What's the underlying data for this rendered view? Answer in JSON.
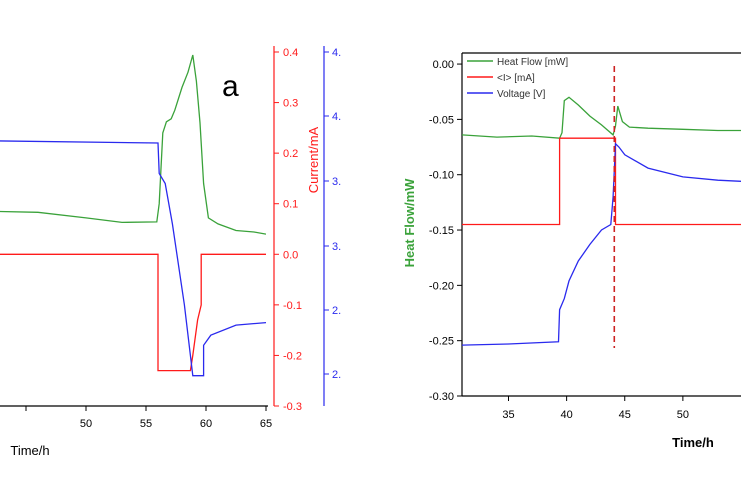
{
  "colors": {
    "heat_flow": "#3aa23a",
    "current": "#ff1a1a",
    "voltage": "#2a2aee",
    "axis": "#000000",
    "marker": "#cc2222"
  },
  "chart_data": [
    {
      "type": "line",
      "panel_label": "a",
      "xlabel": "Time/h",
      "ylabel_right_1": "Current/mA",
      "xlim": [
        40,
        65
      ],
      "x_ticks": [
        "50",
        "55",
        "60",
        "65"
      ],
      "y_right_1_lim": [
        -0.3,
        0.4
      ],
      "y_right_1_ticks": [
        "0.4",
        "0.3",
        "0.2",
        "0.1",
        "0.0",
        "-0.1",
        "-0.2",
        "-0.3"
      ],
      "y_right_2_ticks": [
        "4.",
        "4.",
        "3.",
        "3.",
        "2.",
        "2."
      ],
      "grid": false,
      "series": [
        {
          "axis": "heat_flow",
          "points": [
            [
              40,
              0.086
            ],
            [
              46,
              0.083
            ],
            [
              50,
              0.072
            ],
            [
              53,
              0.063
            ],
            [
              55.9,
              0.064
            ],
            [
              56.1,
              0.1
            ],
            [
              56.4,
              0.24
            ],
            [
              56.7,
              0.262
            ],
            [
              57.1,
              0.268
            ],
            [
              57.4,
              0.285
            ],
            [
              58.0,
              0.33
            ],
            [
              58.5,
              0.36
            ],
            [
              58.9,
              0.394
            ],
            [
              59.2,
              0.342
            ],
            [
              59.5,
              0.26
            ],
            [
              59.8,
              0.14
            ],
            [
              60.2,
              0.072
            ],
            [
              61.0,
              0.06
            ],
            [
              62.5,
              0.047
            ],
            [
              64,
              0.044
            ],
            [
              65,
              0.04
            ]
          ]
        },
        {
          "axis": "current",
          "points": [
            [
              40,
              0.0
            ],
            [
              56,
              0.0
            ],
            [
              56,
              -0.23
            ],
            [
              58.7,
              -0.23
            ],
            [
              58.9,
              -0.2
            ],
            [
              59.3,
              -0.13
            ],
            [
              59.6,
              -0.1
            ],
            [
              59.6,
              0.0
            ],
            [
              65,
              0.0
            ]
          ]
        },
        {
          "axis": "current",
          "points": [
            [
              40,
              0.225
            ],
            [
              56,
              0.22
            ],
            [
              56.1,
              0.16
            ],
            [
              56.6,
              0.14
            ],
            [
              57.2,
              0.06
            ],
            [
              58.2,
              -0.1
            ],
            [
              58.7,
              -0.2
            ],
            [
              58.9,
              -0.24
            ],
            [
              59.8,
              -0.24
            ],
            [
              59.8,
              -0.18
            ],
            [
              60.4,
              -0.16
            ],
            [
              62.5,
              -0.14
            ],
            [
              65,
              -0.135
            ]
          ]
        }
      ]
    },
    {
      "type": "line",
      "xlabel": "Time/h",
      "ylabel": "Heat Flow/mW",
      "xlim": [
        31,
        55
      ],
      "ylim": [
        -0.3,
        0.01
      ],
      "x_ticks": [
        "35",
        "40",
        "45",
        "50"
      ],
      "y_ticks": [
        "0.00",
        "-0.05",
        "-0.10",
        "-0.15",
        "-0.20",
        "-0.25",
        "-0.30"
      ],
      "grid": false,
      "legend_position": "top-left",
      "vertical_marker_x": 44.1,
      "series": [
        {
          "name": "Heat Flow [mW]",
          "axis": "heat_flow",
          "points": [
            [
              31,
              -0.064
            ],
            [
              34,
              -0.066
            ],
            [
              37,
              -0.065
            ],
            [
              39.4,
              -0.067
            ],
            [
              39.6,
              -0.062
            ],
            [
              39.8,
              -0.033
            ],
            [
              40.2,
              -0.03
            ],
            [
              41.0,
              -0.037
            ],
            [
              42,
              -0.047
            ],
            [
              43,
              -0.055
            ],
            [
              44,
              -0.064
            ],
            [
              44.2,
              -0.056
            ],
            [
              44.4,
              -0.038
            ],
            [
              44.8,
              -0.052
            ],
            [
              45.4,
              -0.057
            ],
            [
              47,
              -0.058
            ],
            [
              50,
              -0.059
            ],
            [
              53,
              -0.06
            ],
            [
              55,
              -0.06
            ]
          ]
        },
        {
          "name": "<I> [mA]",
          "axis": "current",
          "points": [
            [
              31,
              -0.145
            ],
            [
              39.4,
              -0.145
            ],
            [
              39.4,
              -0.067
            ],
            [
              44.2,
              -0.067
            ],
            [
              44.2,
              -0.145
            ],
            [
              55,
              -0.145
            ]
          ]
        },
        {
          "name": "Voltage [V]",
          "axis": "voltage",
          "points": [
            [
              31,
              -0.254
            ],
            [
              35,
              -0.253
            ],
            [
              39.3,
              -0.251
            ],
            [
              39.4,
              -0.222
            ],
            [
              39.8,
              -0.212
            ],
            [
              40.2,
              -0.196
            ],
            [
              41,
              -0.178
            ],
            [
              42,
              -0.163
            ],
            [
              43,
              -0.15
            ],
            [
              43.8,
              -0.145
            ],
            [
              44.0,
              -0.12
            ],
            [
              44.2,
              -0.072
            ],
            [
              44.5,
              -0.075
            ],
            [
              45,
              -0.082
            ],
            [
              47,
              -0.094
            ],
            [
              50,
              -0.102
            ],
            [
              53,
              -0.105
            ],
            [
              55,
              -0.106
            ]
          ]
        }
      ]
    }
  ]
}
